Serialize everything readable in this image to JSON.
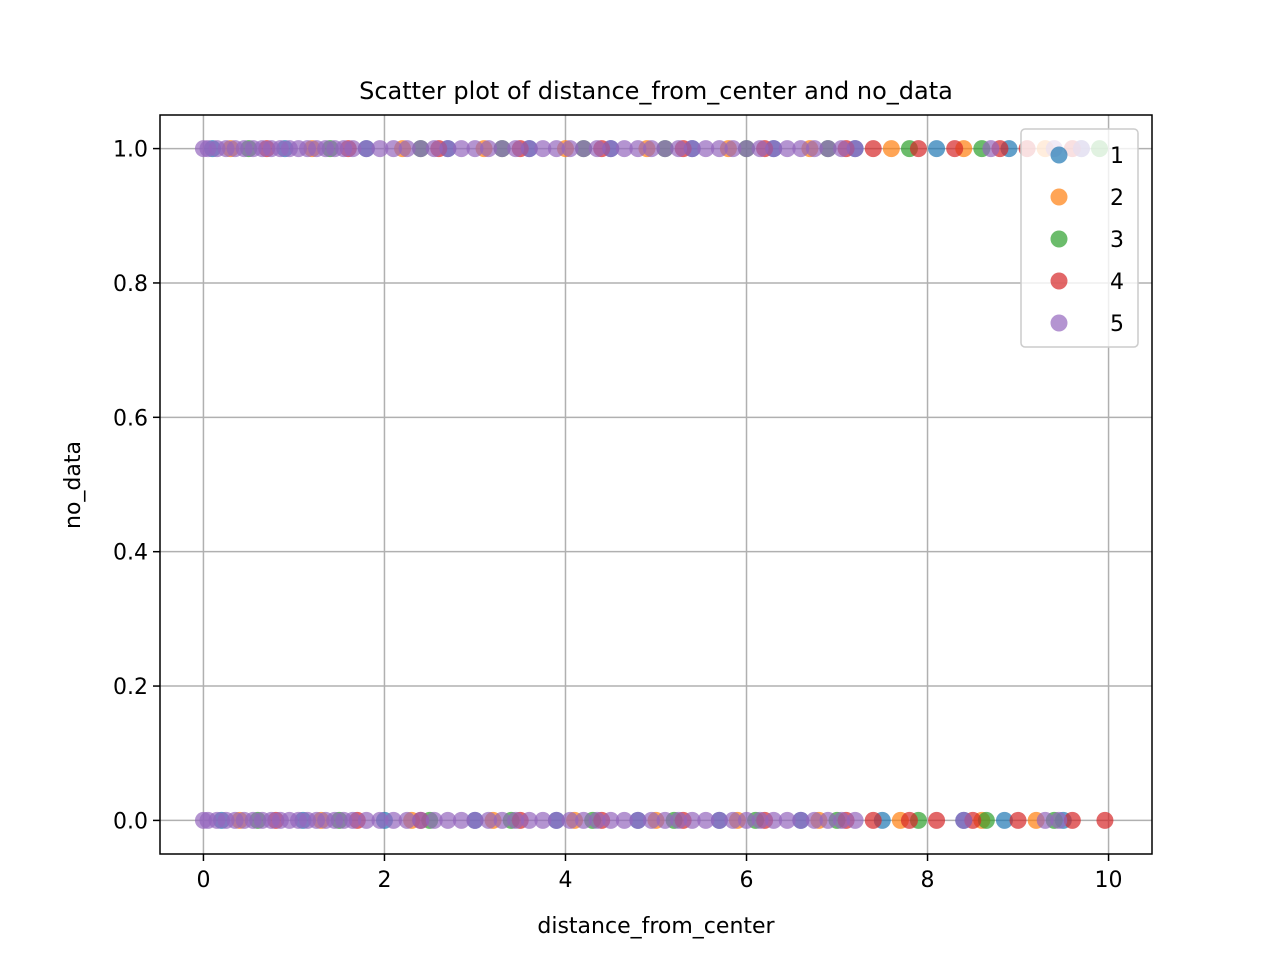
{
  "chart_data": {
    "type": "scatter",
    "title": "Scatter plot of distance_from_center and no_data",
    "xlabel": "distance_from_center",
    "ylabel": "no_data",
    "xlim": [
      -0.48,
      10.48
    ],
    "ylim": [
      -0.05,
      1.05
    ],
    "xticks": [
      0,
      2,
      4,
      6,
      8,
      10
    ],
    "xtick_labels": [
      "0",
      "2",
      "4",
      "6",
      "8",
      "10"
    ],
    "yticks": [
      0.0,
      0.2,
      0.4,
      0.6,
      0.8,
      1.0
    ],
    "ytick_labels": [
      "0.0",
      "0.2",
      "0.4",
      "0.6",
      "0.8",
      "1.0"
    ],
    "grid": true,
    "legend_position": "top-right",
    "series": [
      {
        "name": "1",
        "color": "#1f77b4",
        "x": [
          0.1,
          0.9,
          1.8,
          2.7,
          3.6,
          4.5,
          5.4,
          6.3,
          7.2,
          8.1,
          8.9,
          9.7,
          0.2,
          1.1,
          2.0,
          3.0,
          3.9,
          4.8,
          5.7,
          6.6,
          7.5,
          8.4,
          8.85,
          9.5
        ],
        "y": [
          1,
          1,
          1,
          1,
          1,
          1,
          1,
          1,
          1,
          1,
          1,
          1,
          0,
          0,
          0,
          0,
          0,
          0,
          0,
          0,
          0,
          0,
          0,
          0
        ]
      },
      {
        "name": "2",
        "color": "#ff7f0e",
        "x": [
          0.3,
          1.2,
          2.2,
          3.1,
          4.0,
          4.9,
          5.8,
          6.7,
          7.6,
          8.4,
          9.3,
          0.4,
          1.3,
          2.3,
          3.2,
          4.1,
          5.0,
          5.9,
          6.8,
          7.7,
          8.6,
          9.2
        ],
        "y": [
          1,
          1,
          1,
          1,
          1,
          1,
          1,
          1,
          1,
          1,
          1,
          0,
          0,
          0,
          0,
          0,
          0,
          0,
          0,
          0,
          0,
          0
        ]
      },
      {
        "name": "3",
        "color": "#2ca02c",
        "x": [
          0.5,
          1.4,
          2.4,
          3.3,
          4.2,
          5.1,
          6.0,
          6.9,
          7.8,
          8.6,
          9.9,
          0.6,
          1.5,
          2.5,
          3.4,
          4.3,
          5.2,
          6.1,
          7.0,
          7.9,
          8.65,
          9.4
        ],
        "y": [
          1,
          1,
          1,
          1,
          1,
          1,
          1,
          1,
          1,
          1,
          1,
          0,
          0,
          0,
          0,
          0,
          0,
          0,
          0,
          0,
          0,
          0
        ]
      },
      {
        "name": "4",
        "color": "#d62728",
        "x": [
          0.7,
          1.6,
          2.6,
          3.5,
          4.4,
          5.3,
          6.2,
          7.1,
          7.4,
          7.9,
          8.3,
          8.8,
          9.1,
          9.6,
          0.8,
          1.7,
          2.4,
          3.5,
          4.4,
          5.3,
          6.2,
          7.1,
          7.4,
          7.8,
          8.1,
          8.5,
          9.0,
          9.6,
          9.96
        ],
        "y": [
          1,
          1,
          1,
          1,
          1,
          1,
          1,
          1,
          1,
          1,
          1,
          1,
          1,
          1,
          0,
          0,
          0,
          0,
          0,
          0,
          0,
          0,
          0,
          0,
          0,
          0,
          0,
          0,
          0
        ]
      },
      {
        "name": "5",
        "color": "#9467bd",
        "x": [
          0.0,
          0.05,
          0.15,
          0.25,
          0.35,
          0.45,
          0.55,
          0.65,
          0.75,
          0.85,
          0.95,
          1.05,
          1.15,
          1.25,
          1.35,
          1.45,
          1.55,
          1.65,
          1.8,
          1.95,
          2.1,
          2.25,
          2.4,
          2.55,
          2.7,
          2.85,
          3.0,
          3.15,
          3.3,
          3.45,
          3.6,
          3.75,
          3.9,
          4.05,
          4.2,
          4.35,
          4.5,
          4.65,
          4.8,
          4.95,
          5.1,
          5.25,
          5.4,
          5.55,
          5.7,
          5.85,
          6.0,
          6.15,
          6.3,
          6.45,
          6.6,
          6.75,
          6.9,
          7.05,
          7.2,
          8.7,
          9.4,
          9.7,
          0.0,
          0.05,
          0.15,
          0.25,
          0.35,
          0.45,
          0.55,
          0.65,
          0.75,
          0.85,
          0.95,
          1.05,
          1.15,
          1.25,
          1.35,
          1.45,
          1.55,
          1.65,
          1.8,
          1.95,
          2.1,
          2.25,
          2.4,
          2.55,
          2.7,
          2.85,
          3.0,
          3.15,
          3.3,
          3.45,
          3.6,
          3.75,
          3.9,
          4.05,
          4.2,
          4.35,
          4.5,
          4.65,
          4.8,
          4.95,
          5.1,
          5.25,
          5.4,
          5.55,
          5.7,
          5.85,
          6.0,
          6.15,
          6.3,
          6.45,
          6.6,
          6.75,
          6.9,
          7.05,
          7.2,
          8.4,
          9.3,
          9.45
        ],
        "y": [
          1,
          1,
          1,
          1,
          1,
          1,
          1,
          1,
          1,
          1,
          1,
          1,
          1,
          1,
          1,
          1,
          1,
          1,
          1,
          1,
          1,
          1,
          1,
          1,
          1,
          1,
          1,
          1,
          1,
          1,
          1,
          1,
          1,
          1,
          1,
          1,
          1,
          1,
          1,
          1,
          1,
          1,
          1,
          1,
          1,
          1,
          1,
          1,
          1,
          1,
          1,
          1,
          1,
          1,
          1,
          1,
          1,
          1,
          0,
          0,
          0,
          0,
          0,
          0,
          0,
          0,
          0,
          0,
          0,
          0,
          0,
          0,
          0,
          0,
          0,
          0,
          0,
          0,
          0,
          0,
          0,
          0,
          0,
          0,
          0,
          0,
          0,
          0,
          0,
          0,
          0,
          0,
          0,
          0,
          0,
          0,
          0,
          0,
          0,
          0,
          0,
          0,
          0,
          0,
          0,
          0,
          0,
          0,
          0,
          0,
          0,
          0,
          0,
          0,
          0,
          0
        ]
      }
    ]
  }
}
